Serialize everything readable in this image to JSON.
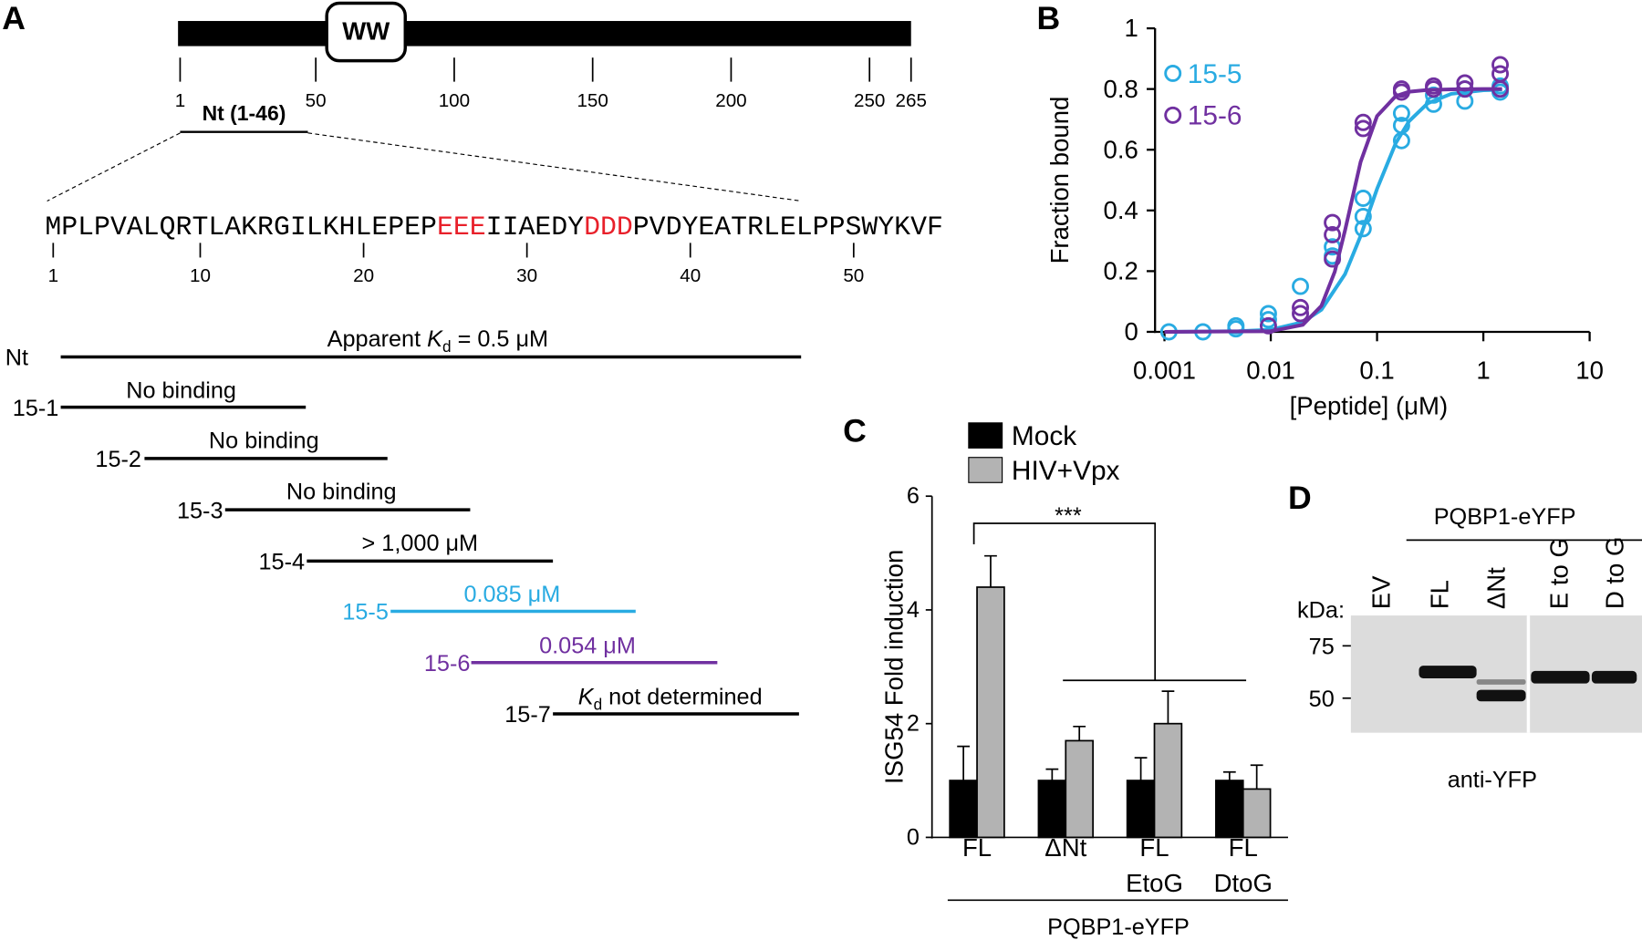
{
  "panel_a": {
    "label": "A",
    "domain": "WW",
    "ruler_ticks": [
      1,
      50,
      100,
      150,
      200,
      250,
      265
    ],
    "region": "Nt (1-46)",
    "sequence": [
      "MPLPVALQRTLAKRGILKHLEPEP",
      "EEE",
      "IIAEDY",
      "DDD",
      "PVDYEATRLELPPSWYKVF"
    ],
    "sequence_ticks": [
      1,
      10,
      20,
      30,
      40,
      50
    ],
    "peptides": [
      {
        "name": "Nt",
        "label": [
          "Apparent ",
          "K",
          "d",
          " = 0.5 μM"
        ]
      },
      {
        "name": "15-1",
        "label": [
          "No binding"
        ]
      },
      {
        "name": "15-2",
        "label": [
          "No binding"
        ]
      },
      {
        "name": "15-3",
        "label": [
          "No binding"
        ]
      },
      {
        "name": "15-4",
        "label": [
          "> 1,000 μM"
        ]
      },
      {
        "name": "15-5",
        "label": [
          "0.085 μM"
        ]
      },
      {
        "name": "15-6",
        "label": [
          "0.054 μM"
        ]
      },
      {
        "name": "15-7",
        "label": [
          "K",
          "d",
          " not determined"
        ]
      }
    ]
  },
  "chart_data": [
    {
      "type": "scatter",
      "label": "B",
      "xlabel": "[Peptide] (μM)",
      "ylabel": "Fraction bound",
      "xscale": "log",
      "xlim": [
        0.001,
        10
      ],
      "xticks": [
        0.001,
        0.01,
        0.1,
        1,
        10
      ],
      "ylim": [
        0,
        1
      ],
      "yticks": [
        0,
        0.2,
        0.4,
        0.6,
        0.8,
        1
      ],
      "legend": "upper left",
      "series": [
        {
          "name": "15-5",
          "color": "#29abe2",
          "x": [
            0.0011,
            0.0023,
            0.0047,
            0.0047,
            0.0095,
            0.0095,
            0.019,
            0.038,
            0.038,
            0.074,
            0.074,
            0.074,
            0.17,
            0.17,
            0.17,
            0.34,
            0.34,
            0.67,
            0.67,
            1.44,
            1.44
          ],
          "values": [
            0,
            0,
            0.01,
            0.02,
            0.04,
            0.06,
            0.15,
            0.25,
            0.28,
            0.44,
            0.38,
            0.34,
            0.72,
            0.63,
            0.68,
            0.78,
            0.75,
            0.8,
            0.76,
            0.79,
            0.81
          ],
          "fit": {
            "x": [
              0.001,
              0.005,
              0.01,
              0.02,
              0.03,
              0.05,
              0.07,
              0.1,
              0.15,
              0.2,
              0.3,
              0.5,
              1,
              1.5
            ],
            "values": [
              0,
              0.002,
              0.007,
              0.032,
              0.073,
              0.19,
              0.316,
              0.471,
              0.622,
              0.694,
              0.753,
              0.784,
              0.796,
              0.798
            ]
          }
        },
        {
          "name": "15-6",
          "color": "#7030a0",
          "x": [
            0.0095,
            0.019,
            0.019,
            0.038,
            0.038,
            0.038,
            0.074,
            0.074,
            0.17,
            0.17,
            0.34,
            0.34,
            0.67,
            0.67,
            1.44,
            1.44,
            1.44
          ],
          "values": [
            0.02,
            0.06,
            0.08,
            0.24,
            0.32,
            0.36,
            0.67,
            0.69,
            0.79,
            0.8,
            0.8,
            0.81,
            0.82,
            0.8,
            0.8,
            0.85,
            0.88
          ],
          "fit": {
            "x": [
              0.001,
              0.01,
              0.02,
              0.03,
              0.04,
              0.05,
              0.07,
              0.1,
              0.15,
              0.2,
              0.3,
              0.5,
              1,
              1.5
            ],
            "values": [
              0,
              0.002,
              0.023,
              0.086,
              0.198,
              0.334,
              0.56,
              0.711,
              0.777,
              0.791,
              0.797,
              0.799,
              0.8,
              0.8
            ]
          }
        }
      ]
    },
    {
      "type": "bar",
      "label": "C",
      "ylabel": "ISG54 Fold induction",
      "categories": [
        [
          "FL"
        ],
        [
          "ΔNt"
        ],
        [
          "FL",
          "EtoG"
        ],
        [
          "FL",
          "DtoG"
        ]
      ],
      "group_label": "PQBP1-eYFP",
      "ylim": [
        0,
        6
      ],
      "yticks": [
        0,
        2,
        4,
        6
      ],
      "legend": "upper left",
      "annotations": [
        "***"
      ],
      "series": [
        {
          "name": "Mock",
          "color": "#000000",
          "values": [
            1,
            1,
            1,
            1
          ],
          "errors": [
            0.6,
            0.2,
            0.4,
            0.15
          ]
        },
        {
          "name": "HIV+Vpx",
          "color": "#b3b3b3",
          "values": [
            4.4,
            1.7,
            2.0,
            0.85
          ],
          "errors": [
            0.55,
            0.25,
            0.57,
            0.42
          ]
        }
      ]
    }
  ],
  "panel_d": {
    "label": "D",
    "header": "PQBP1-eYFP",
    "lanes": [
      "EV",
      "FL",
      "ΔNt",
      "E to G",
      "D to G"
    ],
    "unit": "kDa:",
    "markers": [
      75,
      50
    ],
    "antibody": "anti-YFP"
  }
}
